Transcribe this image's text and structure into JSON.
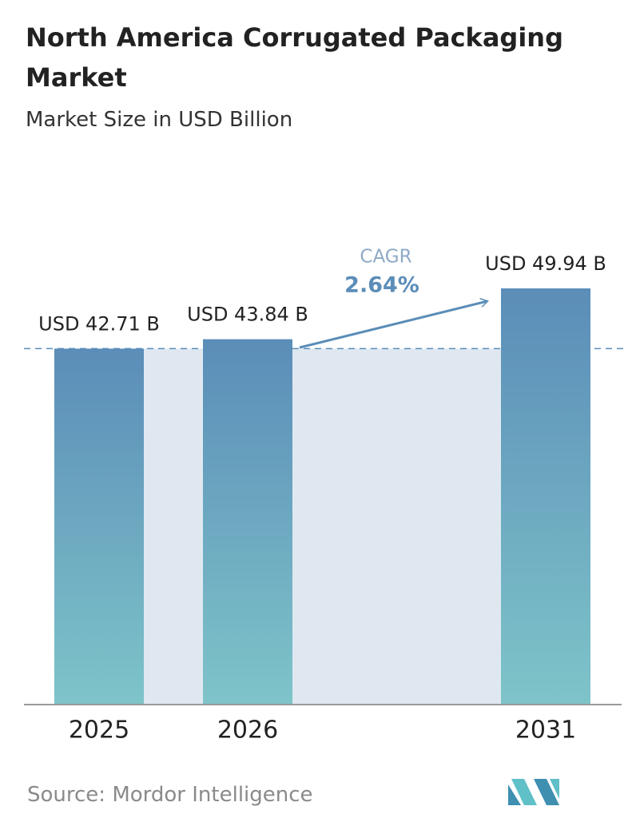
{
  "chart_data": {
    "type": "bar",
    "title": "North America Corrugated Packaging Market",
    "subtitle": "Market Size in USD Billion",
    "categories": [
      "2025",
      "2026",
      "2031"
    ],
    "values": [
      42.71,
      43.84,
      49.94
    ],
    "value_labels": [
      "USD 42.71 B",
      "USD 43.84 B",
      "USD 49.94 B"
    ],
    "color": "#5b8db8",
    "cagr_label": "CAGR",
    "cagr_value": "2.64%",
    "source": "Source:  Mordor Intelligence"
  }
}
